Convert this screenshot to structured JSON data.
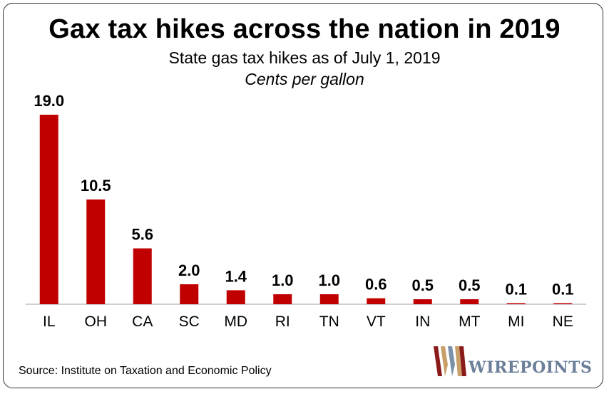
{
  "chart_data": {
    "type": "bar",
    "title": "Gax tax hikes across the nation in 2019",
    "subtitle": "State gas tax hikes as of July 1, 2019",
    "unit_label": "Cents per gallon",
    "categories": [
      "IL",
      "OH",
      "CA",
      "SC",
      "MD",
      "RI",
      "TN",
      "VT",
      "IN",
      "MT",
      "MI",
      "NE"
    ],
    "values": [
      19.0,
      10.5,
      5.6,
      2.0,
      1.4,
      1.0,
      1.0,
      0.6,
      0.5,
      0.5,
      0.1,
      0.1
    ],
    "value_labels": [
      "19.0",
      "10.5",
      "5.6",
      "2.0",
      "1.4",
      "1.0",
      "1.0",
      "0.6",
      "0.5",
      "0.5",
      "0.1",
      "0.1"
    ],
    "ylim": [
      0,
      19.0
    ],
    "bar_color": "#c00000",
    "grid": false,
    "legend": "none"
  },
  "source": "Source: Institute on Taxation and Economic Policy",
  "logo": {
    "text": "WIREPOINTS",
    "icon": "wirepoints-logo-icon"
  }
}
